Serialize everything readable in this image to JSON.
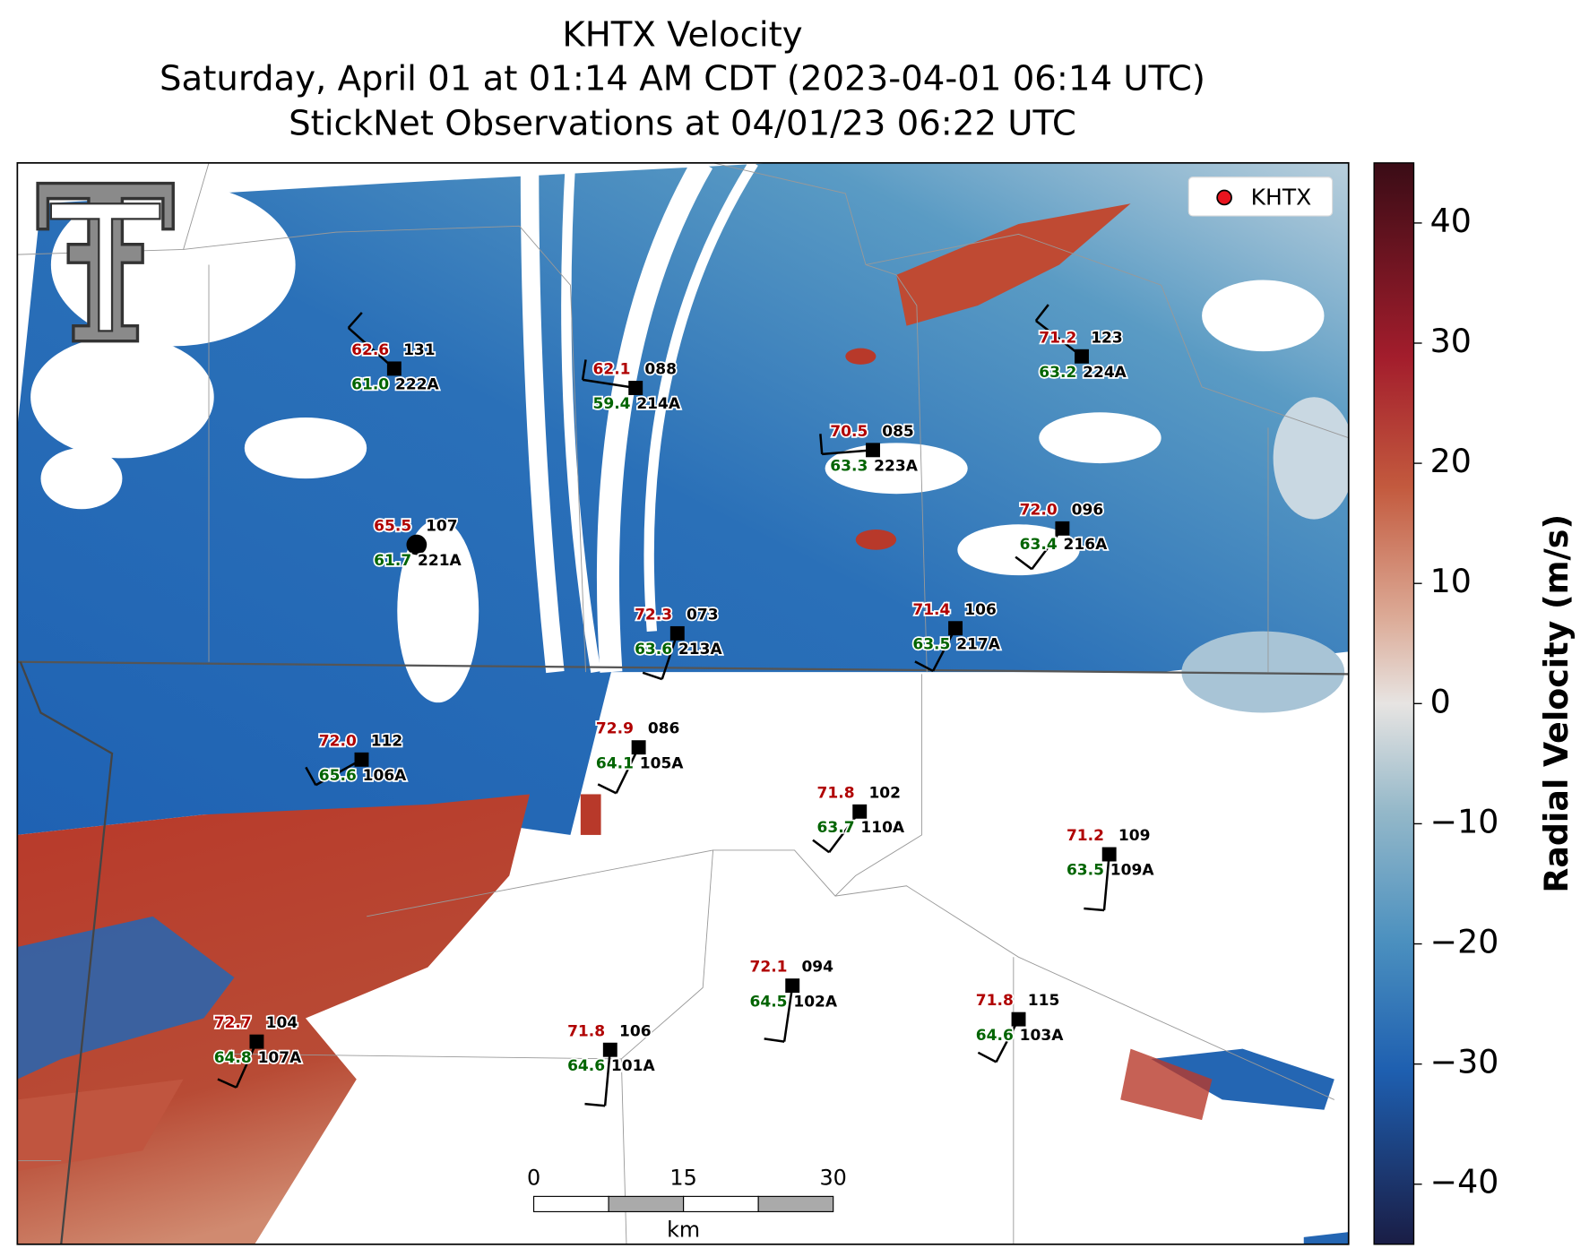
{
  "header": {
    "title": "KHTX Velocity",
    "subtitle": "Saturday, April 01 at 01:14 AM CDT (2023-04-01 06:14 UTC)",
    "observations": "StickNet Observations at 04/01/23 06:22 UTC"
  },
  "legend": {
    "label": "KHTX"
  },
  "colorbar": {
    "label": "Radial Velocity (m/s)",
    "lim": [
      -45,
      45
    ],
    "ticks": [
      {
        "value": -40,
        "label": "−40"
      },
      {
        "value": -30,
        "label": "−30"
      },
      {
        "value": -20,
        "label": "−20"
      },
      {
        "value": -10,
        "label": "−10"
      },
      0,
      10,
      20,
      30,
      40
    ]
  },
  "scale_bar": {
    "ticks": [
      "0",
      "15",
      "30"
    ],
    "unit": "km"
  },
  "stations": [
    {
      "id": "222A",
      "temperature": "62.6",
      "dewpoint": "61.0",
      "direction": "131"
    },
    {
      "id": "214A",
      "temperature": "62.1",
      "dewpoint": "59.4",
      "direction": "088"
    },
    {
      "id": "224A",
      "temperature": "71.2",
      "dewpoint": "63.2",
      "direction": "123"
    },
    {
      "id": "223A",
      "temperature": "70.5",
      "dewpoint": "63.3",
      "direction": "085"
    },
    {
      "id": "221A",
      "temperature": "65.5",
      "dewpoint": "61.7",
      "direction": "107"
    },
    {
      "id": "216A",
      "temperature": "72.0",
      "dewpoint": "63.4",
      "direction": "096"
    },
    {
      "id": "213A",
      "temperature": "72.3",
      "dewpoint": "63.6",
      "direction": "073"
    },
    {
      "id": "217A",
      "temperature": "71.4",
      "dewpoint": "63.5",
      "direction": "106"
    },
    {
      "id": "106A",
      "temperature": "72.0",
      "dewpoint": "65.6",
      "direction": "112"
    },
    {
      "id": "105A",
      "temperature": "72.9",
      "dewpoint": "64.1",
      "direction": "086"
    },
    {
      "id": "110A",
      "temperature": "71.8",
      "dewpoint": "63.7",
      "direction": "102"
    },
    {
      "id": "109A",
      "temperature": "71.2",
      "dewpoint": "63.5",
      "direction": "109"
    },
    {
      "id": "102A",
      "temperature": "72.1",
      "dewpoint": "64.5",
      "direction": "094"
    },
    {
      "id": "107A",
      "temperature": "72.7",
      "dewpoint": "64.8",
      "direction": "104"
    },
    {
      "id": "101A",
      "temperature": "71.8",
      "dewpoint": "64.6",
      "direction": "106"
    },
    {
      "id": "103A",
      "temperature": "71.8",
      "dewpoint": "64.6",
      "direction": "115"
    }
  ]
}
